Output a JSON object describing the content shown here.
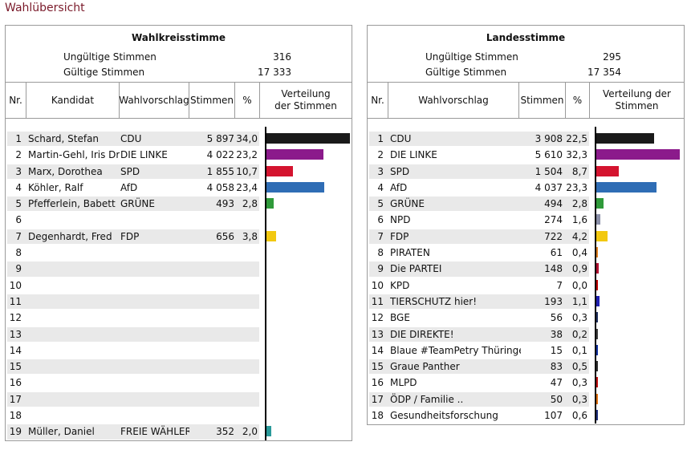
{
  "title": "Wahlübersicht",
  "wahlkreis": {
    "header": "Wahlkreisstimme",
    "stats": [
      {
        "label": "Ungültige Stimmen",
        "value": "316"
      },
      {
        "label": "Gültige Stimmen",
        "value": "17 333"
      }
    ],
    "columns": [
      "Nr.",
      "Kandidat",
      "Wahlvorschlag",
      "Stimmen",
      "%",
      "Verteilung der Stimmen"
    ],
    "rows": [
      {
        "nr": "1",
        "kandidat": "Schard, Stefan",
        "vorschlag": "CDU",
        "stimmen": "5 897",
        "pct": "34,0",
        "value": 34.0,
        "color": "#1a1a1a"
      },
      {
        "nr": "2",
        "kandidat": "Martin-Gehl, Iris Dr.",
        "vorschlag": "DIE LINKE",
        "stimmen": "4 022",
        "pct": "23,2",
        "value": 23.2,
        "color": "#8b1a8b"
      },
      {
        "nr": "3",
        "kandidat": "Marx, Dorothea",
        "vorschlag": "SPD",
        "stimmen": "1 855",
        "pct": "10,7",
        "value": 10.7,
        "color": "#d4142f"
      },
      {
        "nr": "4",
        "kandidat": "Köhler, Ralf",
        "vorschlag": "AfD",
        "stimmen": "4 058",
        "pct": "23,4",
        "value": 23.4,
        "color": "#2f6db5"
      },
      {
        "nr": "5",
        "kandidat": "Pfefferlein, Babett",
        "vorschlag": "GRÜNE",
        "stimmen": "493",
        "pct": "2,8",
        "value": 2.8,
        "color": "#2f9a3a"
      },
      {
        "nr": "6",
        "kandidat": "",
        "vorschlag": "",
        "stimmen": "",
        "pct": "",
        "value": 0,
        "color": "#ffffff"
      },
      {
        "nr": "7",
        "kandidat": "Degenhardt, Fred",
        "vorschlag": "FDP",
        "stimmen": "656",
        "pct": "3,8",
        "value": 3.8,
        "color": "#f2c810"
      },
      {
        "nr": "8",
        "kandidat": "",
        "vorschlag": "",
        "stimmen": "",
        "pct": "",
        "value": 0,
        "color": "#ffffff"
      },
      {
        "nr": "9",
        "kandidat": "",
        "vorschlag": "",
        "stimmen": "",
        "pct": "",
        "value": 0,
        "color": "#ffffff"
      },
      {
        "nr": "10",
        "kandidat": "",
        "vorschlag": "",
        "stimmen": "",
        "pct": "",
        "value": 0,
        "color": "#ffffff"
      },
      {
        "nr": "11",
        "kandidat": "",
        "vorschlag": "",
        "stimmen": "",
        "pct": "",
        "value": 0,
        "color": "#ffffff"
      },
      {
        "nr": "12",
        "kandidat": "",
        "vorschlag": "",
        "stimmen": "",
        "pct": "",
        "value": 0,
        "color": "#ffffff"
      },
      {
        "nr": "13",
        "kandidat": "",
        "vorschlag": "",
        "stimmen": "",
        "pct": "",
        "value": 0,
        "color": "#ffffff"
      },
      {
        "nr": "14",
        "kandidat": "",
        "vorschlag": "",
        "stimmen": "",
        "pct": "",
        "value": 0,
        "color": "#ffffff"
      },
      {
        "nr": "15",
        "kandidat": "",
        "vorschlag": "",
        "stimmen": "",
        "pct": "",
        "value": 0,
        "color": "#ffffff"
      },
      {
        "nr": "16",
        "kandidat": "",
        "vorschlag": "",
        "stimmen": "",
        "pct": "",
        "value": 0,
        "color": "#ffffff"
      },
      {
        "nr": "17",
        "kandidat": "",
        "vorschlag": "",
        "stimmen": "",
        "pct": "",
        "value": 0,
        "color": "#ffffff"
      },
      {
        "nr": "18",
        "kandidat": "",
        "vorschlag": "",
        "stimmen": "",
        "pct": "",
        "value": 0,
        "color": "#ffffff"
      },
      {
        "nr": "19",
        "kandidat": "Müller, Daniel",
        "vorschlag": "FREIE WÄHLER",
        "stimmen": "352",
        "pct": "2,0",
        "value": 2.0,
        "color": "#2a9a9a"
      }
    ]
  },
  "landes": {
    "header": "Landesstimme",
    "stats": [
      {
        "label": "Ungültige Stimmen",
        "value": "295"
      },
      {
        "label": "Gültige Stimmen",
        "value": "17 354"
      }
    ],
    "columns": [
      "Nr.",
      "Wahlvorschlag",
      "Stimmen",
      "%",
      "Verteilung der Stimmen"
    ],
    "rows": [
      {
        "nr": "1",
        "vorschlag": "CDU",
        "stimmen": "3 908",
        "pct": "22,5",
        "value": 22.5,
        "color": "#1a1a1a"
      },
      {
        "nr": "2",
        "vorschlag": "DIE LINKE",
        "stimmen": "5 610",
        "pct": "32,3",
        "value": 32.3,
        "color": "#8b1a8b"
      },
      {
        "nr": "3",
        "vorschlag": "SPD",
        "stimmen": "1 504",
        "pct": "8,7",
        "value": 8.7,
        "color": "#d4142f"
      },
      {
        "nr": "4",
        "vorschlag": "AfD",
        "stimmen": "4 037",
        "pct": "23,3",
        "value": 23.3,
        "color": "#2f6db5"
      },
      {
        "nr": "5",
        "vorschlag": "GRÜNE",
        "stimmen": "494",
        "pct": "2,8",
        "value": 2.8,
        "color": "#2f9a3a"
      },
      {
        "nr": "6",
        "vorschlag": "NPD",
        "stimmen": "274",
        "pct": "1,6",
        "value": 1.6,
        "color": "#8a8fa8"
      },
      {
        "nr": "7",
        "vorschlag": "FDP",
        "stimmen": "722",
        "pct": "4,2",
        "value": 4.2,
        "color": "#f2c810"
      },
      {
        "nr": "8",
        "vorschlag": "PIRATEN",
        "stimmen": "61",
        "pct": "0,4",
        "value": 0.4,
        "color": "#e08020"
      },
      {
        "nr": "9",
        "vorschlag": "Die PARTEI",
        "stimmen": "148",
        "pct": "0,9",
        "value": 0.9,
        "color": "#b01030"
      },
      {
        "nr": "10",
        "vorschlag": "KPD",
        "stimmen": "7",
        "pct": "0,0",
        "value": 0.0,
        "color": "#c00000"
      },
      {
        "nr": "11",
        "vorschlag": "TIERSCHUTZ hier!",
        "stimmen": "193",
        "pct": "1,1",
        "value": 1.1,
        "color": "#2020b0"
      },
      {
        "nr": "12",
        "vorschlag": "BGE",
        "stimmen": "56",
        "pct": "0,3",
        "value": 0.3,
        "color": "#203060"
      },
      {
        "nr": "13",
        "vorschlag": "DIE DIREKTE!",
        "stimmen": "38",
        "pct": "0,2",
        "value": 0.2,
        "color": "#404040"
      },
      {
        "nr": "14",
        "vorschlag": "Blaue #TeamPetry Thüringen",
        "stimmen": "15",
        "pct": "0,1",
        "value": 0.1,
        "color": "#1030a0"
      },
      {
        "nr": "15",
        "vorschlag": "Graue Panther",
        "stimmen": "83",
        "pct": "0,5",
        "value": 0.5,
        "color": "#303030"
      },
      {
        "nr": "16",
        "vorschlag": "MLPD",
        "stimmen": "47",
        "pct": "0,3",
        "value": 0.3,
        "color": "#c01010"
      },
      {
        "nr": "17",
        "vorschlag": "ÖDP / Familie ..",
        "stimmen": "50",
        "pct": "0,3",
        "value": 0.3,
        "color": "#e07010"
      },
      {
        "nr": "18",
        "vorschlag": "Gesundheitsforschung",
        "stimmen": "107",
        "pct": "0,6",
        "value": 0.6,
        "color": "#203080"
      }
    ]
  }
}
